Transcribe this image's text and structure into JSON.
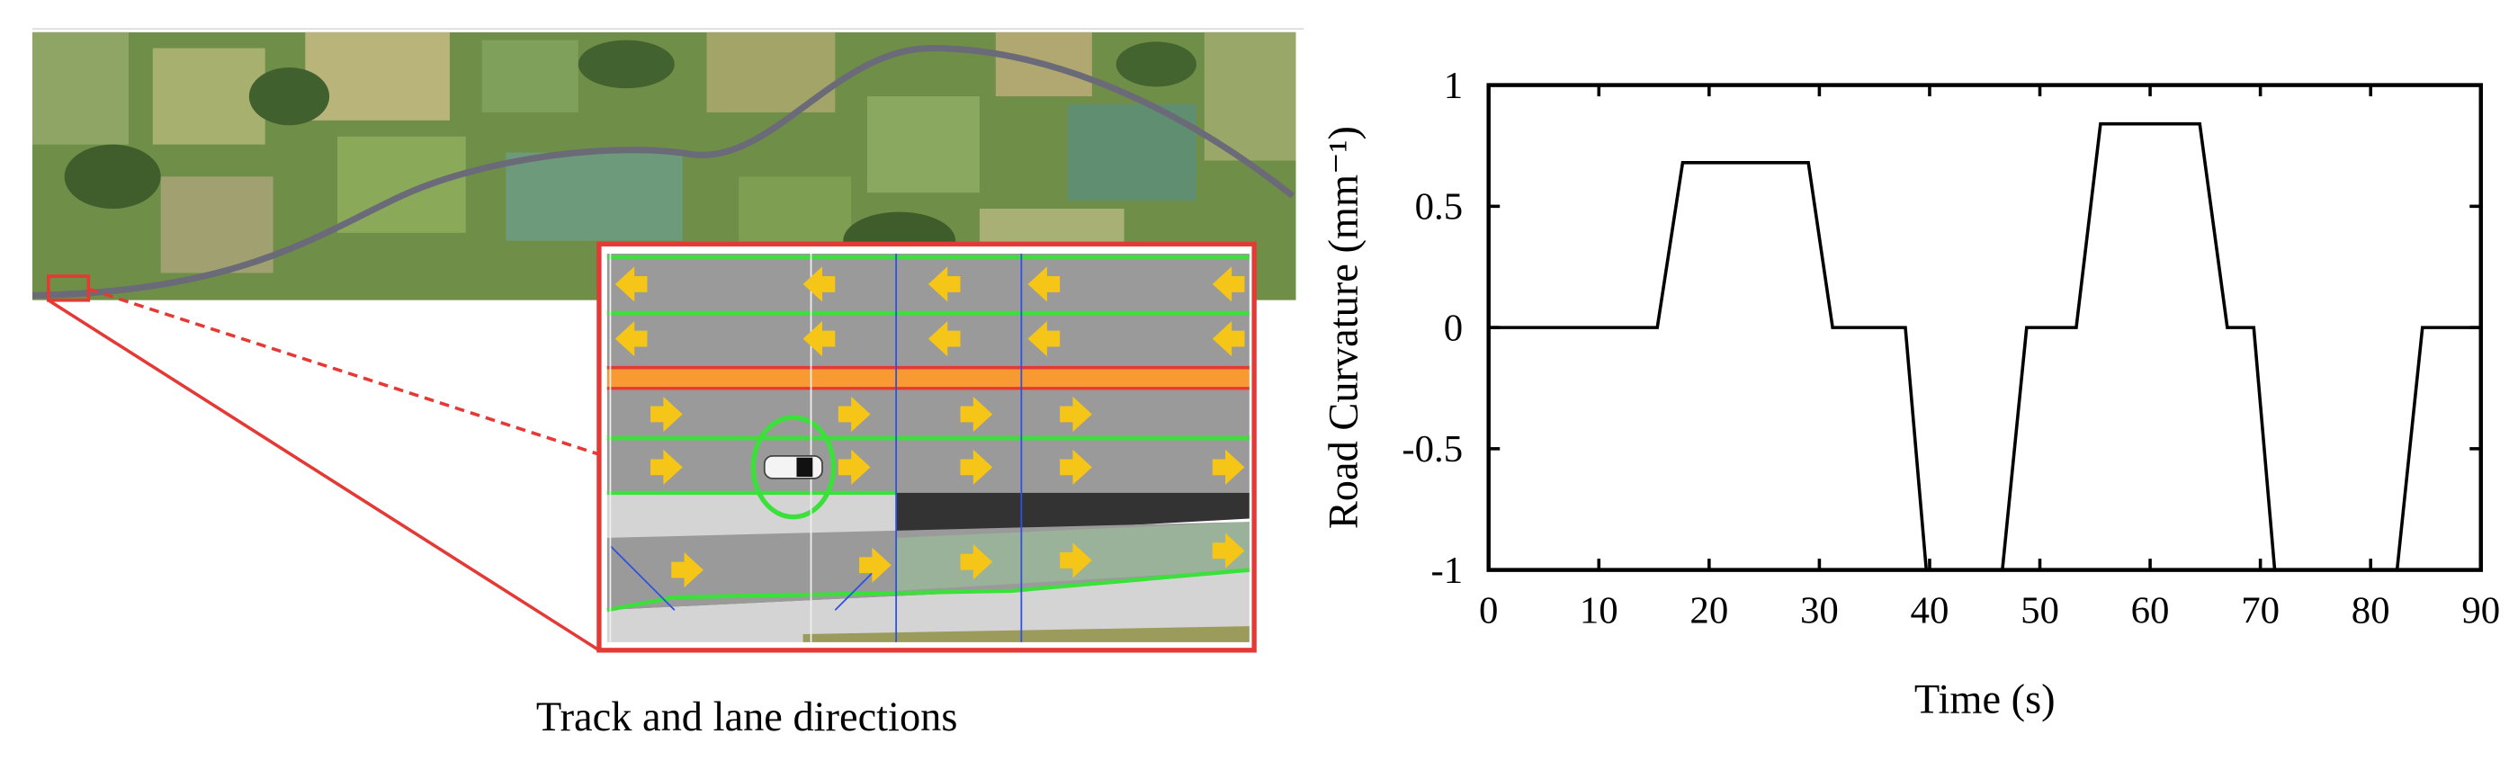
{
  "caption": "Track and lane directions",
  "chart_data": {
    "type": "line",
    "xlabel": "Time (s)",
    "ylabel": "Road Curvature (mm⁻¹)",
    "x": [
      0,
      15.3,
      17.6,
      29,
      31.2,
      37.8,
      39.7,
      46.6,
      48.8,
      53.3,
      55.5,
      64.5,
      67,
      69.4,
      71.3,
      82.4,
      84.7,
      90
    ],
    "values": [
      0,
      0,
      0.68,
      0.68,
      0,
      0,
      -1,
      -1,
      0,
      0,
      0.84,
      0.84,
      0,
      0,
      -1,
      -1,
      0,
      0
    ],
    "color": "#000000",
    "xlim": [
      0,
      90
    ],
    "xticks": [
      0,
      10,
      20,
      30,
      40,
      50,
      60,
      70,
      80,
      90
    ],
    "ylim": [
      -1,
      1
    ],
    "yticks": [
      1,
      0.5,
      0,
      -0.5,
      -1
    ]
  }
}
